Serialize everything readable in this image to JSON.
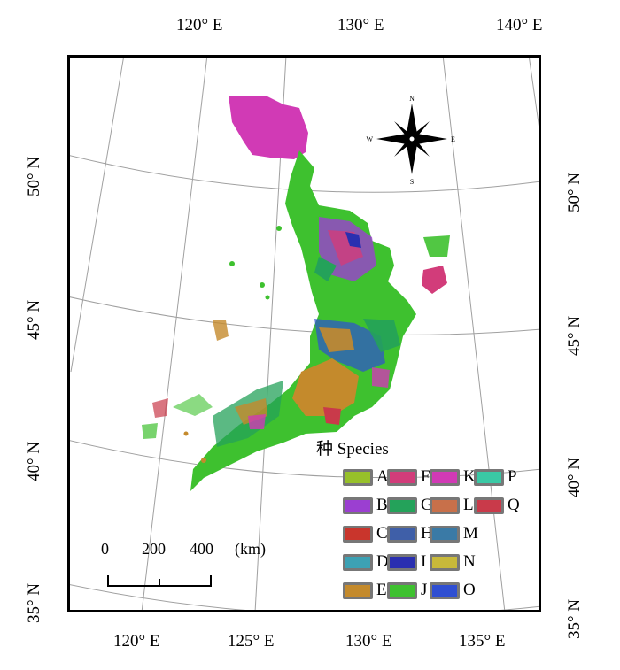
{
  "top_lon_labels": [
    "120° E",
    "130° E",
    "140° E"
  ],
  "bottom_lon_labels": [
    "120° E",
    "125° E",
    "130° E",
    "135° E"
  ],
  "left_lat_labels": [
    "50° N",
    "45° N",
    "40° N",
    "35° N"
  ],
  "right_lat_labels": [
    "50° N",
    "45° N",
    "40° N",
    "35° N"
  ],
  "compass": {
    "n": "N",
    "s": "S",
    "e": "E",
    "w": "W"
  },
  "legend": {
    "title": "种 Species",
    "items": [
      {
        "label": "A",
        "color": "#97c02a"
      },
      {
        "label": "B",
        "color": "#9b3fd1"
      },
      {
        "label": "C",
        "color": "#c9352c"
      },
      {
        "label": "D",
        "color": "#3ca1b4"
      },
      {
        "label": "E",
        "color": "#c48a2c"
      },
      {
        "label": "F",
        "color": "#d23c7a"
      },
      {
        "label": "G",
        "color": "#24a25a"
      },
      {
        "label": "H",
        "color": "#3f5fa8"
      },
      {
        "label": "I",
        "color": "#2a2fb0"
      },
      {
        "label": "J",
        "color": "#3ec12f"
      },
      {
        "label": "K",
        "color": "#d13ab5"
      },
      {
        "label": "L",
        "color": "#c8704a"
      },
      {
        "label": "M",
        "color": "#3a7aa6"
      },
      {
        "label": "N",
        "color": "#c8b93a"
      },
      {
        "label": "O",
        "color": "#2f4fd2"
      },
      {
        "label": "P",
        "color": "#3ac9a5"
      },
      {
        "label": "Q",
        "color": "#c93a4a"
      }
    ]
  },
  "scale_bar": {
    "ticks": [
      "0",
      "200",
      "400"
    ],
    "unit": "(km)"
  }
}
